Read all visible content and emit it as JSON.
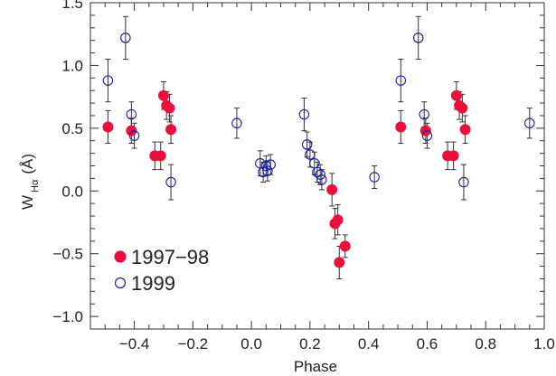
{
  "chart_data": {
    "type": "scatter",
    "title": "",
    "xlabel": "Phase",
    "ylabel": {
      "main": "W",
      "sub": "Hα",
      "unit": "(Å)"
    },
    "xlim": [
      -0.55,
      1.0
    ],
    "ylim": [
      -1.1,
      1.5
    ],
    "xticks": [
      -0.4,
      -0.2,
      0.0,
      0.2,
      0.4,
      0.6,
      0.8,
      1.0
    ],
    "xtick_labels": [
      "−0.4",
      "−0.2",
      "0.0",
      "0.2",
      "0.4",
      "0.6",
      "0.8",
      "1.0"
    ],
    "yticks": [
      -1.0,
      -0.5,
      0.0,
      0.5,
      1.0,
      1.5
    ],
    "ytick_labels": [
      "−1.0",
      "−0.5",
      "0.0",
      "0.5",
      "1.0",
      "1.5"
    ],
    "grid": false,
    "legend": "lower-left",
    "series": [
      {
        "name": "1997−98",
        "marker": "filled-circle",
        "color": "#e8103c",
        "points": [
          {
            "x": -0.49,
            "y": 0.51,
            "err": 0.13
          },
          {
            "x": -0.41,
            "y": 0.48,
            "err": 0.1
          },
          {
            "x": -0.33,
            "y": 0.28,
            "err": 0.11
          },
          {
            "x": -0.31,
            "y": 0.28,
            "err": 0.11
          },
          {
            "x": -0.3,
            "y": 0.76,
            "err": 0.11
          },
          {
            "x": -0.29,
            "y": 0.68,
            "err": 0.11
          },
          {
            "x": -0.28,
            "y": 0.66,
            "err": 0.11
          },
          {
            "x": -0.275,
            "y": 0.49,
            "err": 0.11
          },
          {
            "x": 0.275,
            "y": 0.01,
            "err": 0.13
          },
          {
            "x": 0.285,
            "y": -0.26,
            "err": 0.12
          },
          {
            "x": 0.295,
            "y": -0.23,
            "err": 0.12
          },
          {
            "x": 0.3,
            "y": -0.57,
            "err": 0.13
          },
          {
            "x": 0.32,
            "y": -0.44,
            "err": 0.09
          },
          {
            "x": 0.51,
            "y": 0.51,
            "err": 0.13
          },
          {
            "x": 0.595,
            "y": 0.48,
            "err": 0.1
          },
          {
            "x": 0.67,
            "y": 0.28,
            "err": 0.11
          },
          {
            "x": 0.69,
            "y": 0.28,
            "err": 0.11
          },
          {
            "x": 0.7,
            "y": 0.76,
            "err": 0.11
          },
          {
            "x": 0.71,
            "y": 0.68,
            "err": 0.11
          },
          {
            "x": 0.72,
            "y": 0.66,
            "err": 0.11
          },
          {
            "x": 0.73,
            "y": 0.49,
            "err": 0.11
          }
        ]
      },
      {
        "name": "1999",
        "marker": "open-circle",
        "color": "#1a1aaa",
        "points": [
          {
            "x": -0.49,
            "y": 0.88,
            "err": 0.17
          },
          {
            "x": -0.43,
            "y": 1.22,
            "err": 0.17
          },
          {
            "x": -0.41,
            "y": 0.61,
            "err": 0.1
          },
          {
            "x": -0.4,
            "y": 0.44,
            "err": 0.1
          },
          {
            "x": -0.275,
            "y": 0.07,
            "err": 0.14
          },
          {
            "x": -0.05,
            "y": 0.54,
            "err": 0.12
          },
          {
            "x": 0.03,
            "y": 0.22,
            "err": 0.1
          },
          {
            "x": 0.04,
            "y": 0.15,
            "err": 0.08
          },
          {
            "x": 0.05,
            "y": 0.2,
            "err": 0.08
          },
          {
            "x": 0.055,
            "y": 0.16,
            "err": 0.08
          },
          {
            "x": 0.065,
            "y": 0.21,
            "err": 0.08
          },
          {
            "x": 0.18,
            "y": 0.61,
            "err": 0.13
          },
          {
            "x": 0.19,
            "y": 0.37,
            "err": 0.1
          },
          {
            "x": 0.2,
            "y": 0.29,
            "err": 0.1
          },
          {
            "x": 0.215,
            "y": 0.22,
            "err": 0.09
          },
          {
            "x": 0.225,
            "y": 0.15,
            "err": 0.08
          },
          {
            "x": 0.235,
            "y": 0.13,
            "err": 0.08
          },
          {
            "x": 0.24,
            "y": 0.09,
            "err": 0.08
          },
          {
            "x": 0.42,
            "y": 0.11,
            "err": 0.09
          },
          {
            "x": 0.51,
            "y": 0.88,
            "err": 0.17
          },
          {
            "x": 0.57,
            "y": 1.22,
            "err": 0.17
          },
          {
            "x": 0.59,
            "y": 0.61,
            "err": 0.1
          },
          {
            "x": 0.6,
            "y": 0.44,
            "err": 0.1
          },
          {
            "x": 0.725,
            "y": 0.07,
            "err": 0.14
          },
          {
            "x": 0.95,
            "y": 0.54,
            "err": 0.12
          }
        ]
      }
    ]
  }
}
